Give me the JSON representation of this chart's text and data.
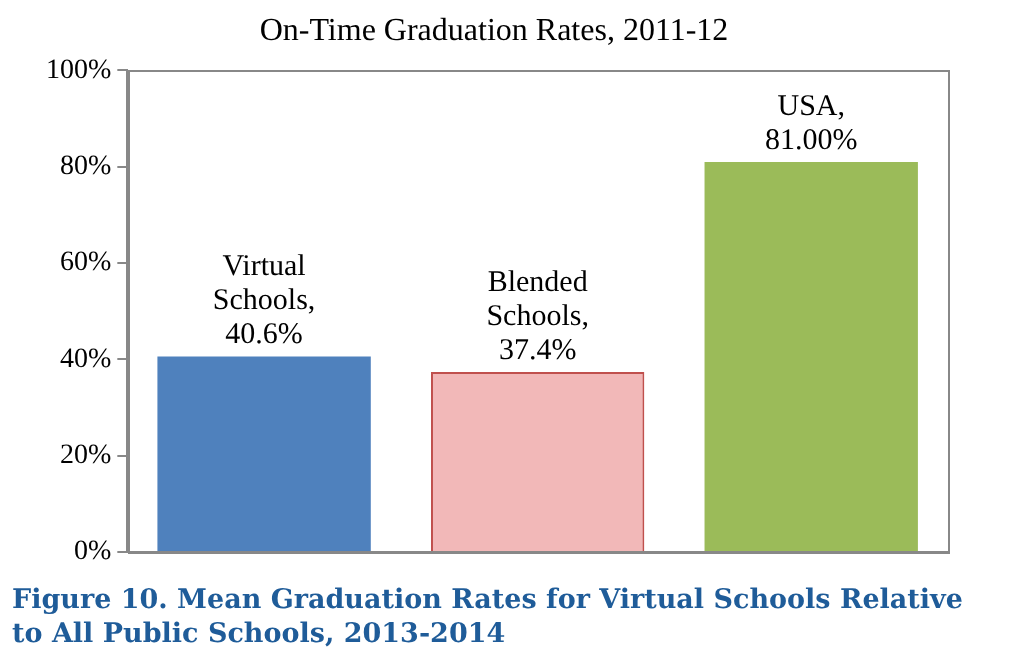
{
  "chart_data": {
    "type": "bar",
    "title": "On-Time Graduation Rates, 2011-12",
    "categories": [
      null,
      null,
      null
    ],
    "values": [
      40.6,
      37.4,
      81.0
    ],
    "colors": [
      "#4f81bd",
      "#f2b8b8",
      "#9bbb59"
    ],
    "value_labels": [
      "Virtual Schools, 40.6%",
      "Blended Schools, 37.4%",
      "USA, 81.00%"
    ],
    "ylim": [
      0,
      100
    ],
    "yticks": [
      {
        "value": 0,
        "label": "0%"
      },
      {
        "value": 20,
        "label": "20%"
      },
      {
        "value": 40,
        "label": "40%"
      },
      {
        "value": 60,
        "label": "60%"
      },
      {
        "value": 80,
        "label": "80%"
      },
      {
        "value": 100,
        "label": "100%"
      }
    ],
    "grid": false,
    "legend": false,
    "annotations": [
      "Figure 10. Mean Graduation Rates for Virtual Schools Relative to All Public Schools, 2013-2014"
    ]
  }
}
